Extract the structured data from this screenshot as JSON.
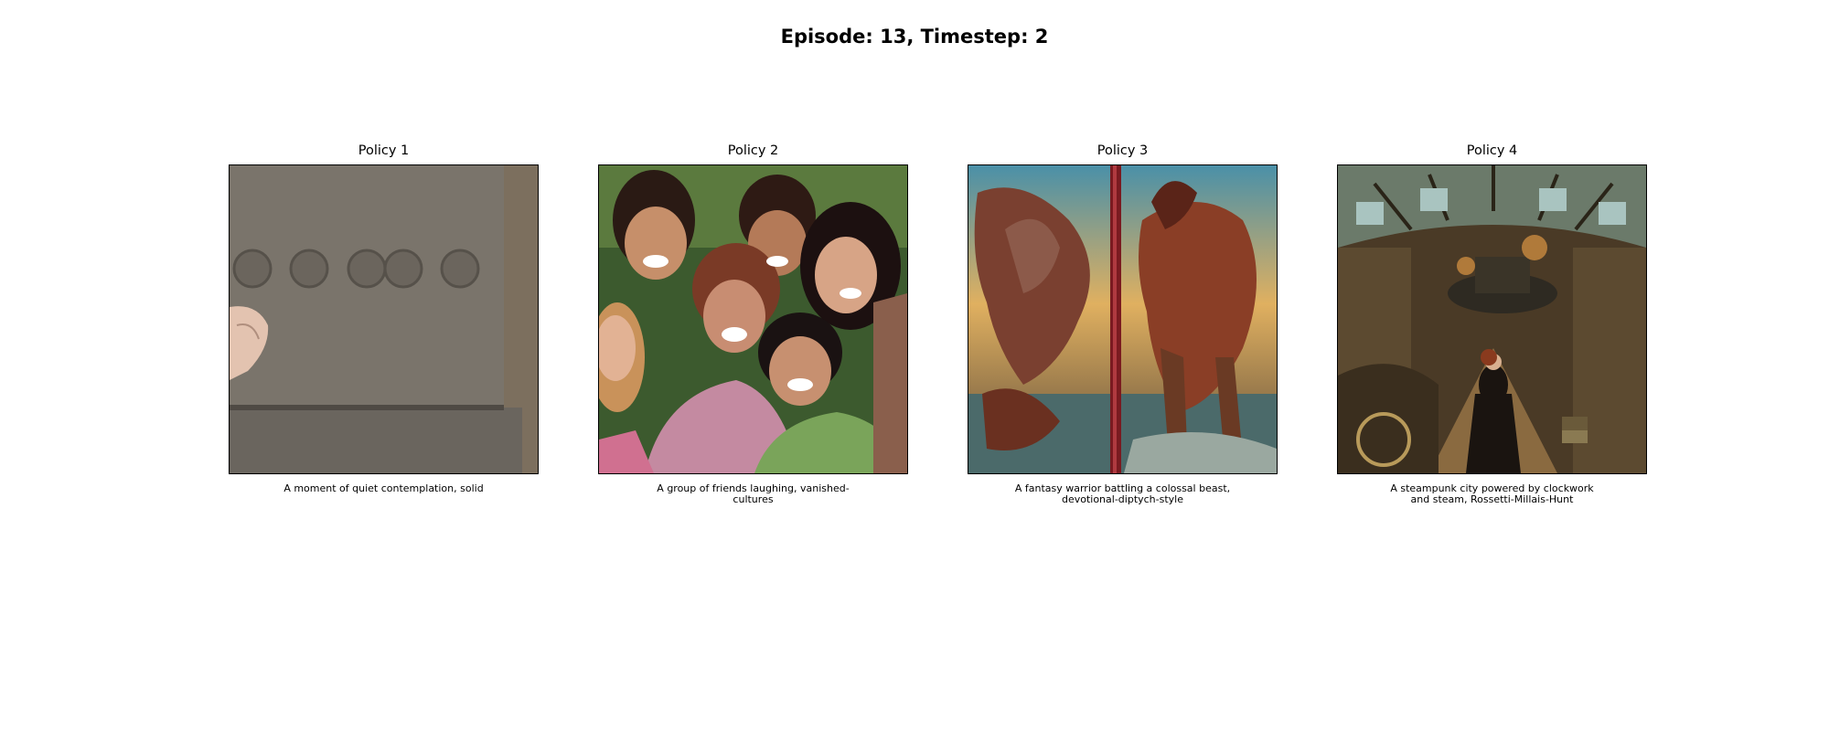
{
  "figure": {
    "title": "Episode: 13, Timestep: 2"
  },
  "panels": [
    {
      "title": "Policy 1",
      "caption": "A moment of quiet contemplation, solid",
      "image": "carved-stone-block-image"
    },
    {
      "title": "Policy 2",
      "caption": "A group of friends laughing, vanished-cultures",
      "image": "laughing-friends-image"
    },
    {
      "title": "Policy 3",
      "caption": "A fantasy warrior battling a colossal beast, devotional-diptych-style",
      "image": "fantasy-diptych-image"
    },
    {
      "title": "Policy 4",
      "caption": "A steampunk city powered by clockwork and steam, Rossetti-Millais-Hunt",
      "image": "steampunk-city-image"
    }
  ]
}
